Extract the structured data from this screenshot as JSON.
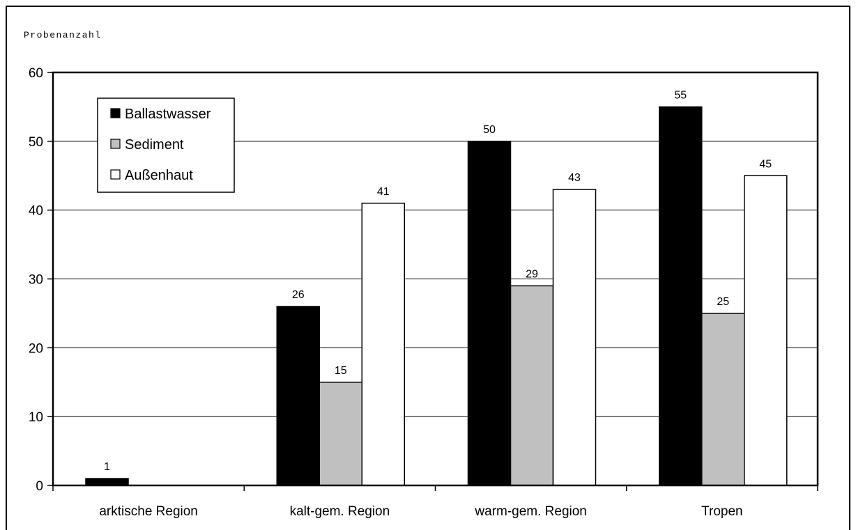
{
  "chart_data": {
    "type": "bar",
    "ylabel": "Probenanzahl",
    "xlabel": "",
    "ylim": [
      0,
      60
    ],
    "yticks": [
      0,
      10,
      20,
      30,
      40,
      50,
      60
    ],
    "grid": true,
    "legend_position": "top-left",
    "categories": [
      "arktische Region",
      "kalt-gem. Region",
      "warm-gem. Region",
      "Tropen"
    ],
    "series": [
      {
        "name": "Ballastwasser",
        "color": "#000000",
        "values": [
          1,
          26,
          50,
          55
        ]
      },
      {
        "name": "Sediment",
        "color": "#c0c0c0",
        "values": [
          null,
          15,
          29,
          25
        ]
      },
      {
        "name": "Außenhaut",
        "color": "#ffffff",
        "values": [
          null,
          41,
          43,
          45
        ]
      }
    ]
  }
}
